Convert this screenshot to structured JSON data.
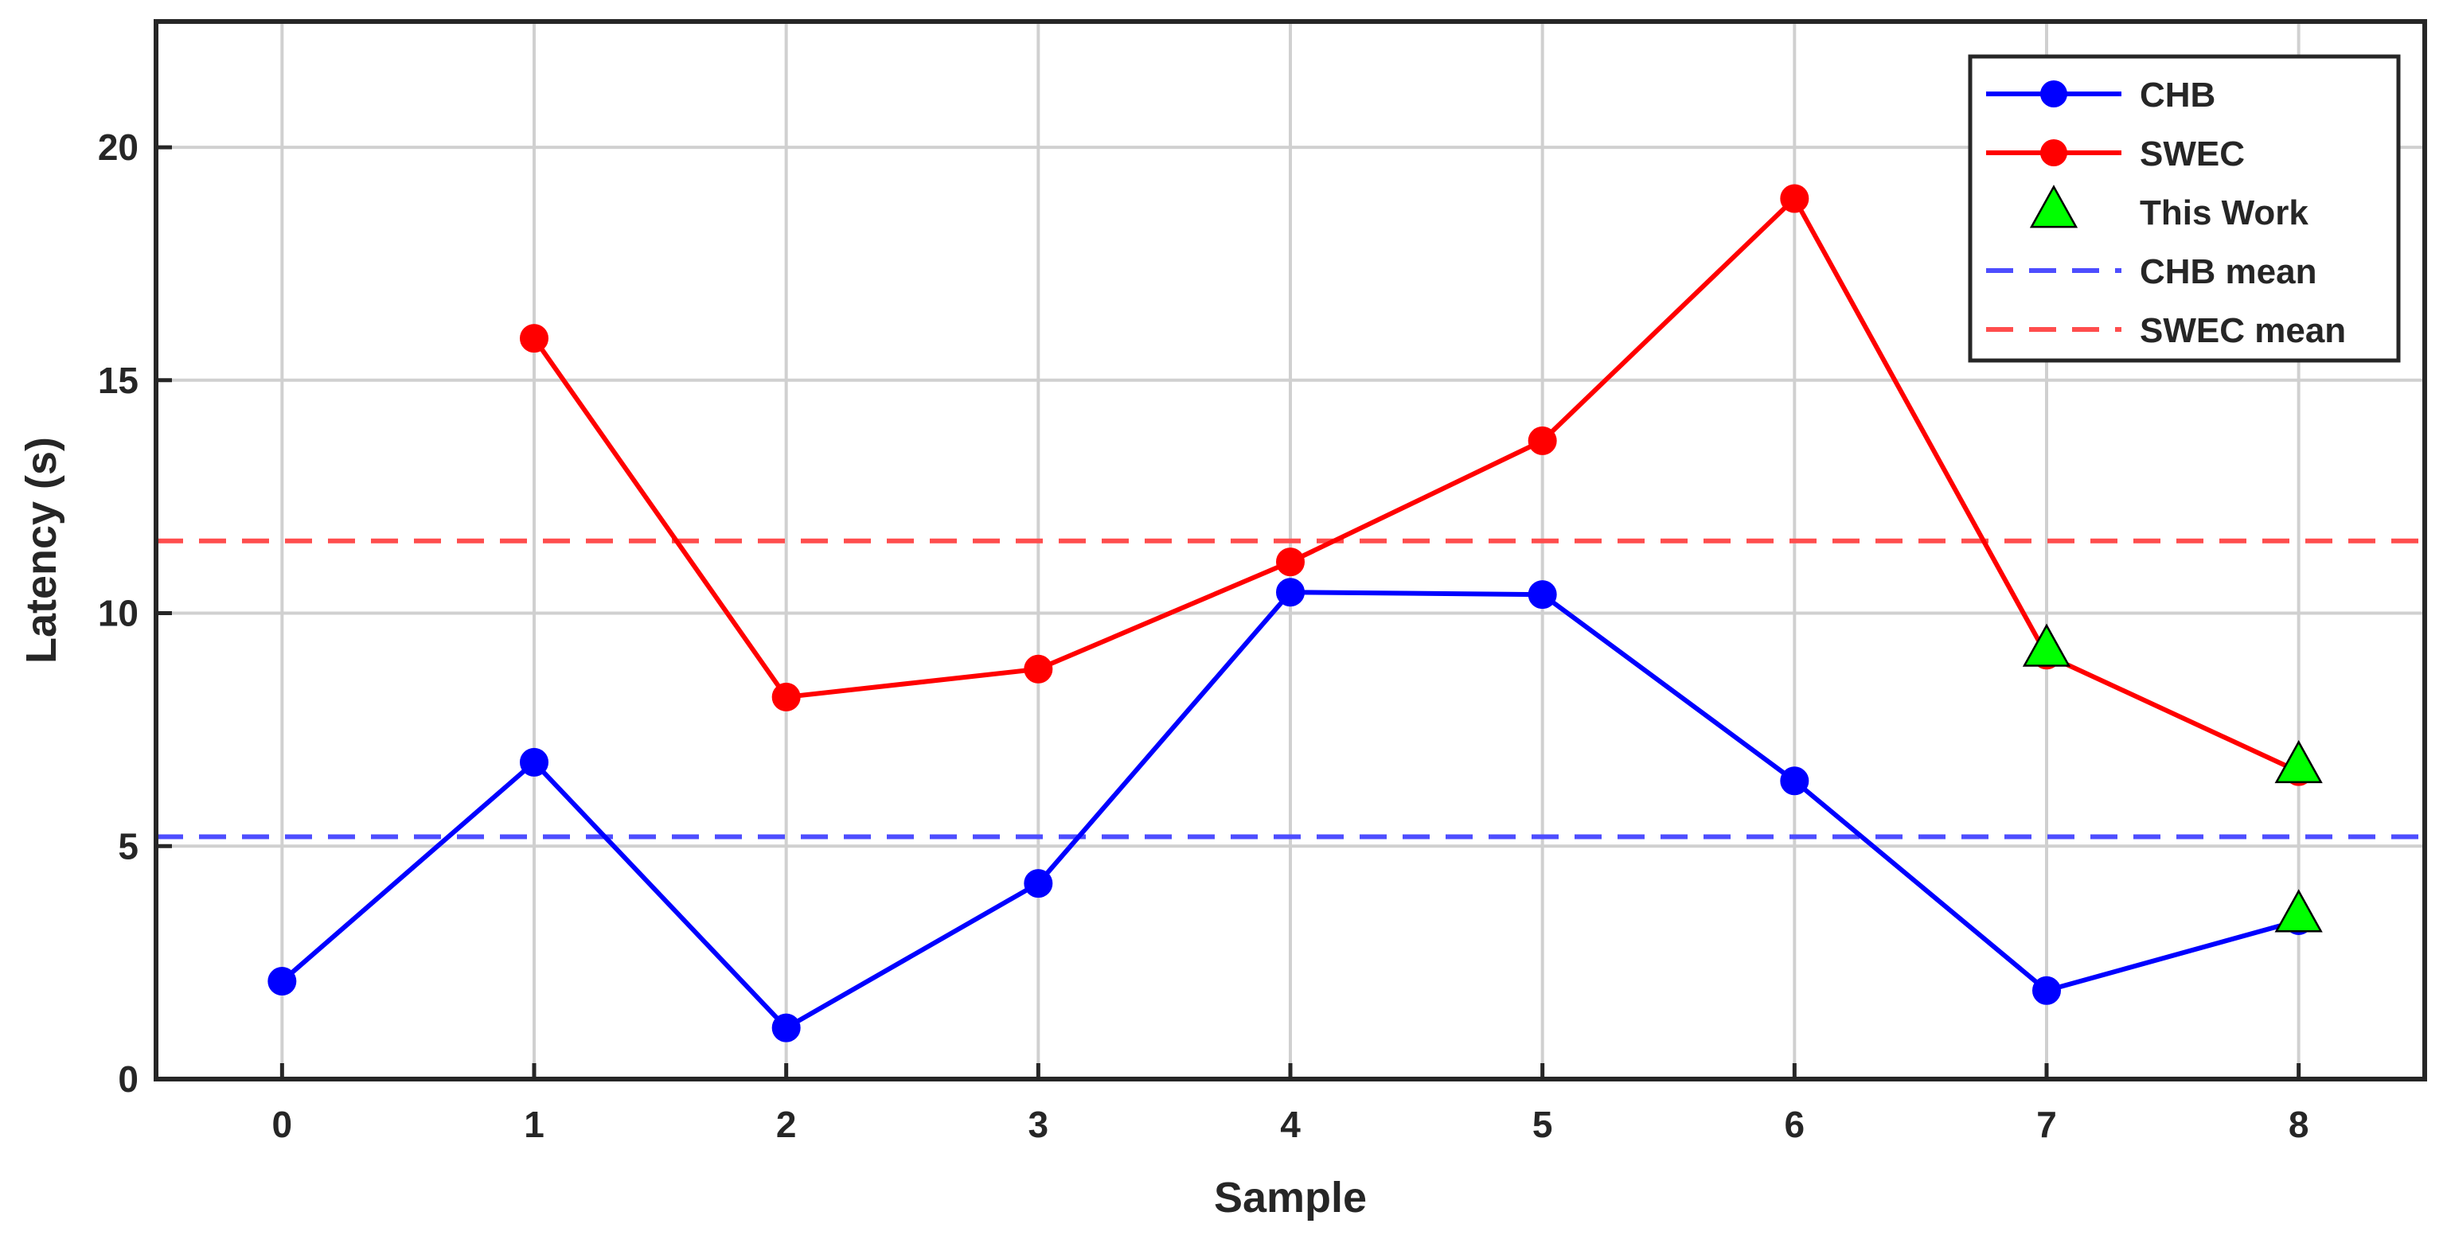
{
  "chart_data": {
    "type": "line",
    "xlabel": "Sample",
    "ylabel": "Latency (s)",
    "xlim": [
      -0.5,
      8.5
    ],
    "ylim": [
      0,
      22.7
    ],
    "xticks": [
      0,
      1,
      2,
      3,
      4,
      5,
      6,
      7,
      8
    ],
    "yticks": [
      0,
      5,
      10,
      15,
      20
    ],
    "xtick_labels": [
      "0",
      "1",
      "2",
      "3",
      "4",
      "5",
      "6",
      "7",
      "8"
    ],
    "ytick_labels": [
      "0",
      "5",
      "10",
      "15",
      "20"
    ],
    "grid": true,
    "legend_position": "top-right",
    "series": [
      {
        "name": "CHB",
        "color": "#0000ff",
        "marker": "circle",
        "line": "solid",
        "x": [
          0,
          1,
          2,
          3,
          4,
          5,
          6,
          7,
          8
        ],
        "y": [
          2.1,
          6.8,
          1.1,
          4.2,
          10.45,
          10.4,
          6.4,
          1.9,
          3.4
        ]
      },
      {
        "name": "SWEC",
        "color": "#ff0000",
        "marker": "circle",
        "line": "solid",
        "x": [
          1,
          2,
          3,
          4,
          5,
          6,
          7,
          8
        ],
        "y": [
          15.9,
          8.2,
          8.8,
          11.1,
          13.7,
          18.9,
          9.1,
          6.6
        ]
      },
      {
        "name": "This Work",
        "color": "#00ff00",
        "marker": "triangle",
        "line": "none",
        "x": [
          7,
          8,
          8
        ],
        "y": [
          9.2,
          6.7,
          3.5
        ]
      },
      {
        "name": "CHB mean",
        "color": "#4d4dff",
        "marker": "none",
        "line": "dashed",
        "y_constant": 5.2
      },
      {
        "name": "SWEC mean",
        "color": "#ff4d4d",
        "marker": "none",
        "line": "dashed",
        "y_constant": 11.55
      }
    ]
  }
}
